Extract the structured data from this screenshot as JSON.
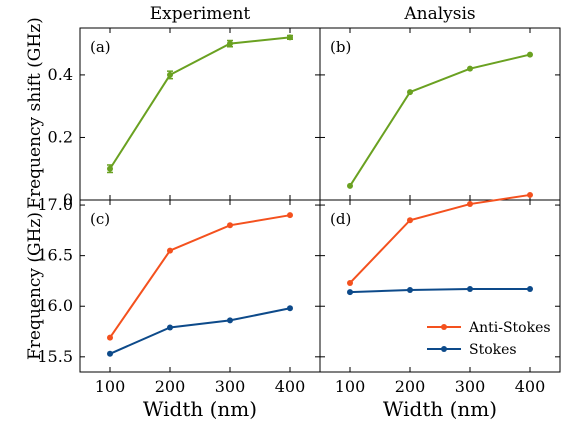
{
  "colors": {
    "green": "#6aa121",
    "orange": "#f4511e",
    "navy": "#0d4a8a",
    "axis": "#000000"
  },
  "column_titles": [
    "Experiment",
    "Analysis"
  ],
  "xlabel": "Width (nm)",
  "ylabel_top": "Frequency shift (GHz)",
  "ylabel_bottom": "Frequency (GHz)",
  "legend": {
    "anti_stokes": "Anti-Stokes",
    "stokes": "Stokes"
  },
  "chart_data": [
    {
      "panel": "(a)",
      "type": "line",
      "column": "Experiment",
      "ylabel": "Frequency shift (GHz)",
      "xlim": [
        50,
        450
      ],
      "ylim": [
        0,
        0.55
      ],
      "xticks": [
        100,
        200,
        300,
        400
      ],
      "yticks": [
        0,
        0.2,
        0.4
      ],
      "ytick_labels": [
        "0",
        "0.2",
        "0.4"
      ],
      "x": [
        100,
        200,
        300,
        400
      ],
      "series": [
        {
          "values": [
            0.1,
            0.4,
            0.5,
            0.52
          ],
          "error": [
            0.012,
            0.012,
            0.01,
            0.006
          ],
          "color": "#6aa121"
        }
      ]
    },
    {
      "panel": "(b)",
      "type": "line",
      "column": "Analysis",
      "xlim": [
        50,
        450
      ],
      "ylim": [
        0,
        0.55
      ],
      "xticks": [
        100,
        200,
        300,
        400
      ],
      "yticks": [
        0,
        0.2,
        0.4
      ],
      "x": [
        100,
        200,
        300,
        400
      ],
      "series": [
        {
          "values": [
            0.045,
            0.345,
            0.42,
            0.465
          ],
          "color": "#6aa121"
        }
      ]
    },
    {
      "panel": "(c)",
      "type": "line",
      "column": "Experiment",
      "ylabel": "Frequency (GHz)",
      "xlim": [
        50,
        450
      ],
      "ylim": [
        15.35,
        17.05
      ],
      "xticks": [
        100,
        200,
        300,
        400
      ],
      "xtick_labels": [
        "100",
        "200",
        "300",
        "400"
      ],
      "yticks": [
        15.5,
        16.0,
        16.5,
        17.0
      ],
      "ytick_labels": [
        "15.5",
        "16.0",
        "16.5",
        "17.0"
      ],
      "x": [
        100,
        200,
        300,
        400
      ],
      "series": [
        {
          "name": "Anti-Stokes",
          "values": [
            15.69,
            16.55,
            16.8,
            16.9
          ],
          "color": "#f4511e"
        },
        {
          "name": "Stokes",
          "values": [
            15.53,
            15.79,
            15.86,
            15.98
          ],
          "color": "#0d4a8a"
        }
      ]
    },
    {
      "panel": "(d)",
      "type": "line",
      "column": "Analysis",
      "xlim": [
        50,
        450
      ],
      "ylim": [
        15.35,
        17.05
      ],
      "xticks": [
        100,
        200,
        300,
        400
      ],
      "xtick_labels": [
        "100",
        "200",
        "300",
        "400"
      ],
      "yticks": [
        15.5,
        16.0,
        16.5,
        17.0
      ],
      "x": [
        100,
        200,
        300,
        400
      ],
      "legend": "lower-right",
      "series": [
        {
          "name": "Anti-Stokes",
          "values": [
            16.23,
            16.85,
            17.01,
            17.1
          ],
          "color": "#f4511e"
        },
        {
          "name": "Stokes",
          "values": [
            16.14,
            16.16,
            16.17,
            16.17
          ],
          "color": "#0d4a8a"
        }
      ]
    }
  ]
}
